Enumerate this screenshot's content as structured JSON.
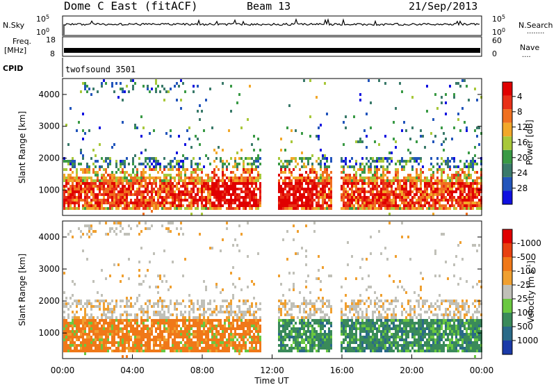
{
  "header": {
    "station": "Dome C East (fitACF)",
    "beam": "Beam 13",
    "date": "21/Sep/2013"
  },
  "panels": {
    "nsky": {
      "label": "N.Sky",
      "ticks_left": [
        "10^5",
        "10^0"
      ],
      "ticks_right": [
        "10^5",
        "10^0"
      ],
      "right_label": "N.Search",
      "right_dots": "........"
    },
    "freq": {
      "label_line1": "Freq.",
      "label_line2": "[MHz]",
      "ticks_left": [
        "18",
        "8"
      ],
      "ticks_right": [
        "60",
        "0"
      ],
      "right_label": "Nave",
      "right_dots": "...."
    },
    "cpid": {
      "label": "CPID",
      "value": "twofsound 3501"
    }
  },
  "chart_data": [
    {
      "type": "heatmap",
      "name": "power",
      "xlabel": "",
      "ylabel": "Slant Range [km]",
      "ylim": [
        200,
        4500
      ],
      "yticks": [
        "1000",
        "2000",
        "3000",
        "4000"
      ],
      "colorbar": {
        "label": "Power [dB]",
        "ticks": [
          "4",
          "8",
          "12",
          "16",
          "20",
          "24",
          "28"
        ],
        "colors": [
          "#1010e0",
          "#2255bb",
          "#3a7a6a",
          "#3a9a45",
          "#a8c83a",
          "#f2a82a",
          "#f07020",
          "#e83018",
          "#e00000"
        ]
      }
    },
    {
      "type": "heatmap",
      "name": "velocity",
      "xlabel": "Time UT",
      "ylabel": "Slant Range [km]",
      "ylim": [
        200,
        4500
      ],
      "yticks": [
        "1000",
        "2000",
        "3000",
        "4000"
      ],
      "xticks": [
        "00:00",
        "04:00",
        "08:00",
        "12:00",
        "16:00",
        "20:00",
        "00:00"
      ],
      "colorbar": {
        "label": "Velocity [m s^-1]",
        "label_main": "Velocity [m s",
        "label_sup": "-1",
        "label_end": "]",
        "ticks": [
          "1000",
          "500",
          "100",
          "25",
          "-25",
          "-100",
          "-500",
          "-1000"
        ],
        "colors": [
          "#1a3aa8",
          "#2a6a88",
          "#3a8a5a",
          "#6ac840",
          "#c0c0b8",
          "#f0a030",
          "#f07818",
          "#e84010",
          "#e00000"
        ]
      }
    }
  ]
}
